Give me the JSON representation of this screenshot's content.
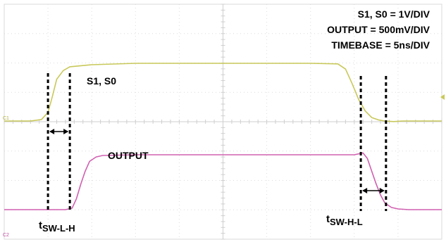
{
  "chart_data": {
    "type": "line",
    "title": "",
    "xlabel": "",
    "ylabel": "",
    "grid": true,
    "settings": {
      "line1": "S1, S0 = 1V/DIV",
      "line2": "OUTPUT = 500mV/DIV",
      "line3": "TIMEBASE = 5ns/DIV"
    },
    "channel_markers": {
      "c1": "C1",
      "c2": "C2"
    },
    "series": [
      {
        "name": "S1, S0",
        "color": "#c8c85a",
        "x": [
          0,
          2.4,
          3.4,
          4.0,
          4.4,
          4.8,
          5.4,
          6.0,
          8.0,
          12.0,
          16.0,
          20.0,
          24.0,
          28.0,
          30.5,
          31.2,
          31.8,
          32.4,
          33.0,
          33.6,
          34.2,
          34.8,
          35.6,
          36.4,
          38.0,
          40.0
        ],
        "y": [
          0.0,
          0.0,
          0.05,
          0.3,
          0.85,
          1.45,
          1.75,
          1.88,
          1.95,
          2.0,
          2.0,
          2.0,
          2.0,
          2.0,
          1.98,
          1.8,
          1.3,
          0.75,
          0.35,
          0.12,
          0.04,
          0.0,
          -0.02,
          0.0,
          0.0,
          0.0
        ]
      },
      {
        "name": "OUTPUT",
        "color": "#d060b0",
        "x": [
          0,
          4.0,
          5.6,
          6.2,
          6.6,
          7.0,
          7.4,
          7.8,
          8.4,
          9.0,
          12.0,
          16.0,
          20.0,
          24.0,
          28.0,
          31.0,
          32.0,
          32.8,
          33.2,
          33.6,
          34.0,
          34.4,
          34.8,
          35.4,
          36.0,
          37.0,
          40.0
        ],
        "y": [
          0.0,
          0.0,
          0.0,
          0.04,
          0.3,
          0.7,
          1.05,
          1.32,
          1.44,
          1.48,
          1.5,
          1.5,
          1.5,
          1.5,
          1.5,
          1.5,
          1.5,
          1.55,
          1.4,
          1.05,
          0.7,
          0.4,
          0.18,
          0.06,
          0.02,
          0.0,
          0.0
        ]
      }
    ],
    "annotations": {
      "s1s0_label": "S1, S0",
      "output_label": "OUTPUT",
      "tswlh_main": "t",
      "tswlh_sub": "SW-L-H",
      "tswhl_main": "t",
      "tswhl_sub": "SW-H-L",
      "tswlh_markers_x": [
        4.0,
        6.0
      ],
      "tswhl_markers_x": [
        32.6,
        34.9
      ]
    },
    "xlim": [
      0,
      40
    ],
    "ylim": [
      -0.3,
      3.2
    ]
  }
}
